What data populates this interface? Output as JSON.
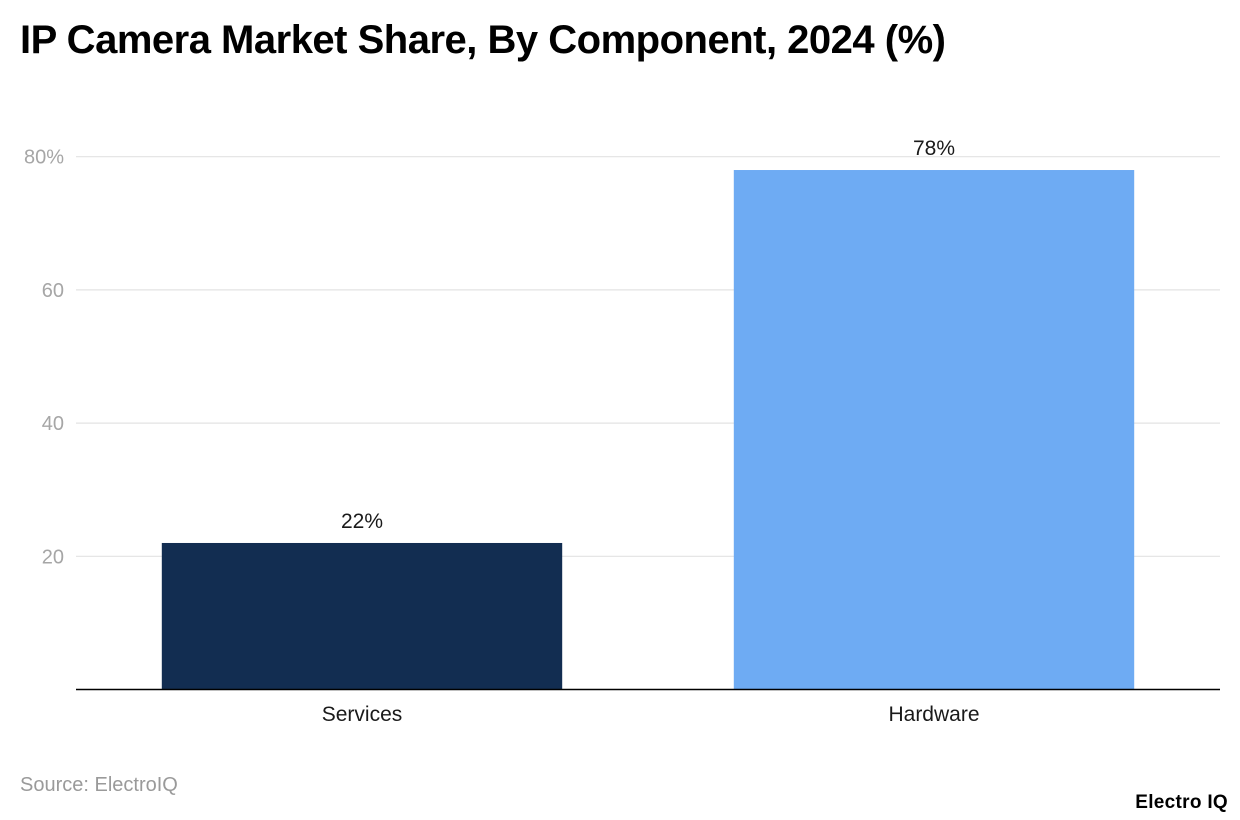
{
  "title": "IP Camera Market Share, By Component, 2024 (%)",
  "source": "Source: ElectroIQ",
  "brand": "Electro IQ",
  "chart_data": {
    "type": "bar",
    "title": "IP Camera Market Share, By Component, 2024 (%)",
    "xlabel": "",
    "ylabel": "",
    "categories": [
      "Services",
      "Hardware"
    ],
    "values": [
      22,
      78
    ],
    "data_labels": [
      "22%",
      "78%"
    ],
    "colors": [
      "#122d51",
      "#6eabf3"
    ],
    "ylim": [
      0,
      80
    ],
    "yticks": [
      20,
      40,
      60,
      80
    ],
    "ytick_labels": [
      "20",
      "40",
      "60",
      "80%"
    ],
    "grid": true,
    "legend": "none"
  }
}
